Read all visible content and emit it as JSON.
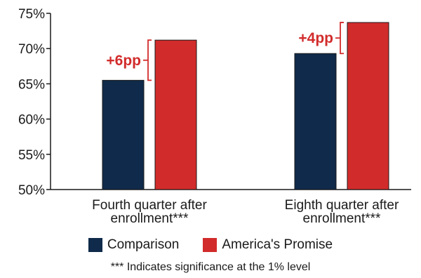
{
  "chart_data": {
    "type": "bar",
    "categories": [
      "Fourth quarter after enrollment***",
      "Eighth quarter after enrollment***"
    ],
    "category_lines": [
      [
        "Fourth quarter after",
        "enrollment***"
      ],
      [
        "Eighth quarter after",
        "enrollment***"
      ]
    ],
    "series": [
      {
        "name": "Comparison",
        "values": [
          65.5,
          69.3
        ],
        "color": "#0f2a4a"
      },
      {
        "name": "America's Promise",
        "values": [
          71.2,
          73.7
        ],
        "color": "#d22b2b"
      }
    ],
    "ylim": [
      50,
      75
    ],
    "yticks": [
      "50%",
      "55%",
      "60%",
      "65%",
      "70%",
      "75%"
    ],
    "annotations": [
      "+6pp",
      "+4pp"
    ],
    "annotation_color": "#d22b2b",
    "legend_position": "bottom",
    "grid": false,
    "footnote": "*** Indicates significance at the 1% level"
  }
}
